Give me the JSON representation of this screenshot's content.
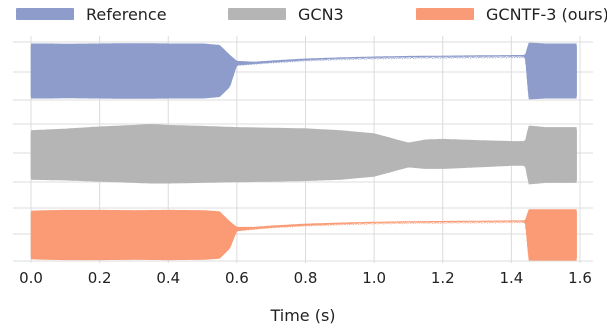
{
  "chart_data": {
    "type": "area",
    "xlabel": "Time (s)",
    "ylabel": "",
    "xlim": [
      0.0,
      1.6
    ],
    "x_ticks": [
      "0.0",
      "0.2",
      "0.4",
      "0.6",
      "0.8",
      "1.0",
      "1.2",
      "1.4",
      "1.6"
    ],
    "grid": true,
    "legend_position": "top",
    "series": [
      {
        "name": "Reference",
        "color": "#8E9CCB",
        "envelope": {
          "x": [
            0.0,
            0.05,
            0.1,
            0.2,
            0.3,
            0.4,
            0.5,
            0.55,
            0.58,
            0.6,
            0.65,
            0.7,
            0.8,
            0.9,
            1.0,
            1.1,
            1.2,
            1.3,
            1.4,
            1.44,
            1.45,
            1.5,
            1.55,
            1.59
          ],
          "upper": [
            0.95,
            0.95,
            0.94,
            0.95,
            0.96,
            0.95,
            0.95,
            0.9,
            0.55,
            0.35,
            0.32,
            0.36,
            0.43,
            0.47,
            0.5,
            0.52,
            0.53,
            0.54,
            0.55,
            0.55,
            0.98,
            0.95,
            0.95,
            0.95
          ],
          "lower": [
            -0.95,
            -0.95,
            -0.94,
            -0.95,
            -0.96,
            -0.95,
            -0.95,
            -0.9,
            -0.55,
            0.2,
            0.25,
            0.3,
            0.38,
            0.43,
            0.46,
            0.48,
            0.49,
            0.5,
            0.51,
            0.51,
            -0.98,
            -0.95,
            -0.95,
            -0.95
          ]
        }
      },
      {
        "name": "GCN3",
        "color": "#B5B5B5",
        "envelope": {
          "x": [
            0.0,
            0.1,
            0.2,
            0.3,
            0.35,
            0.4,
            0.5,
            0.6,
            0.7,
            0.8,
            0.9,
            1.0,
            1.05,
            1.1,
            1.15,
            1.2,
            1.3,
            1.4,
            1.44,
            1.45,
            1.5,
            1.55,
            1.59
          ],
          "upper": [
            0.8,
            0.85,
            0.92,
            0.97,
            1.0,
            0.97,
            0.94,
            0.9,
            0.88,
            0.86,
            0.8,
            0.7,
            0.55,
            0.4,
            0.5,
            0.52,
            0.48,
            0.45,
            0.45,
            0.95,
            0.9,
            0.9,
            0.9
          ],
          "lower": [
            -0.8,
            -0.82,
            -0.86,
            -0.9,
            -0.92,
            -0.92,
            -0.9,
            -0.88,
            -0.86,
            -0.84,
            -0.8,
            -0.7,
            -0.55,
            -0.4,
            -0.45,
            -0.45,
            -0.4,
            -0.35,
            -0.35,
            -0.95,
            -0.9,
            -0.9,
            -0.9
          ]
        }
      },
      {
        "name": "GCNTF-3 (ours)",
        "color": "#F99B76",
        "envelope": {
          "x": [
            0.0,
            0.05,
            0.1,
            0.2,
            0.3,
            0.4,
            0.5,
            0.55,
            0.58,
            0.6,
            0.65,
            0.7,
            0.8,
            0.9,
            1.0,
            1.1,
            1.2,
            1.3,
            1.4,
            1.44,
            1.45,
            1.5,
            1.55,
            1.59
          ],
          "upper": [
            0.9,
            0.92,
            0.93,
            0.93,
            0.92,
            0.93,
            0.92,
            0.88,
            0.5,
            0.3,
            0.3,
            0.35,
            0.42,
            0.46,
            0.49,
            0.51,
            0.52,
            0.53,
            0.54,
            0.54,
            0.95,
            0.95,
            0.95,
            0.95
          ],
          "lower": [
            -0.9,
            -0.92,
            -0.93,
            -0.93,
            -0.92,
            -0.93,
            -0.92,
            -0.88,
            -0.5,
            0.15,
            0.22,
            0.28,
            0.36,
            0.41,
            0.45,
            0.47,
            0.48,
            0.49,
            0.5,
            0.5,
            -0.95,
            -0.95,
            -0.95,
            -0.95
          ]
        }
      }
    ]
  }
}
